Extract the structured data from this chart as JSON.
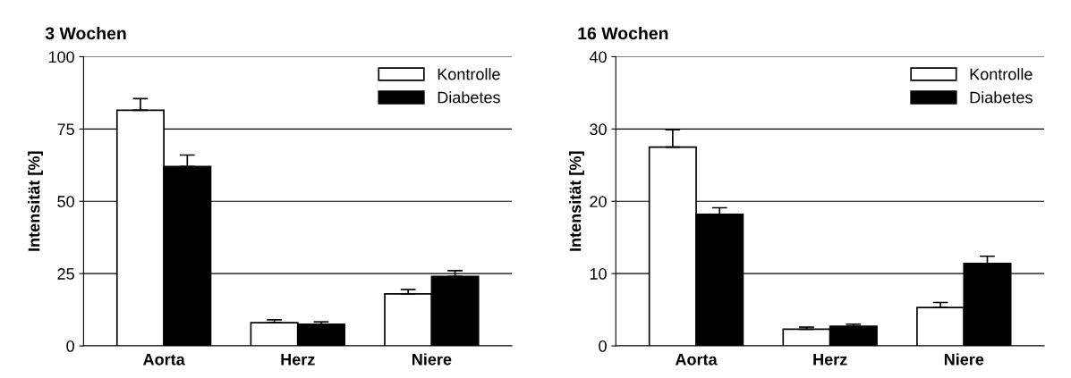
{
  "chart_data": [
    {
      "type": "bar",
      "title": "3 Wochen",
      "ylabel": "Intensität [%]",
      "categories": [
        "Aorta",
        "Herz",
        "Niere"
      ],
      "series": [
        {
          "name": "Kontrolle",
          "color": "#ffffff",
          "values": [
            81.5,
            8,
            18
          ],
          "errors": [
            [
              81.5,
              85.5
            ],
            [
              8,
              9
            ],
            [
              18,
              19.5
            ]
          ]
        },
        {
          "name": "Diabetes",
          "color": "#000000",
          "values": [
            62,
            7.5,
            24
          ],
          "errors": [
            [
              62,
              66
            ],
            [
              7.5,
              8.3
            ],
            [
              24,
              26
            ]
          ]
        }
      ],
      "ylim": [
        0,
        100
      ],
      "yticks": [
        0,
        25,
        50,
        75,
        100
      ],
      "grid": "y",
      "legend": "top right"
    },
    {
      "type": "bar",
      "title": "16 Wochen",
      "ylabel": "Intensität [%]",
      "categories": [
        "Aorta",
        "Herz",
        "Niere"
      ],
      "series": [
        {
          "name": "Kontrolle",
          "color": "#ffffff",
          "values": [
            27.5,
            2.3,
            5.3
          ],
          "errors": [
            [
              27.5,
              29.9
            ],
            [
              2.3,
              2.6
            ],
            [
              5.3,
              6.0
            ]
          ]
        },
        {
          "name": "Diabetes",
          "color": "#000000",
          "values": [
            18.2,
            2.7,
            11.4
          ],
          "errors": [
            [
              18.2,
              19.1
            ],
            [
              2.7,
              3.0
            ],
            [
              11.4,
              12.4
            ]
          ]
        }
      ],
      "ylim": [
        0,
        40
      ],
      "yticks": [
        0,
        10,
        20,
        30,
        40
      ],
      "grid": "y",
      "legend": "top right"
    }
  ]
}
